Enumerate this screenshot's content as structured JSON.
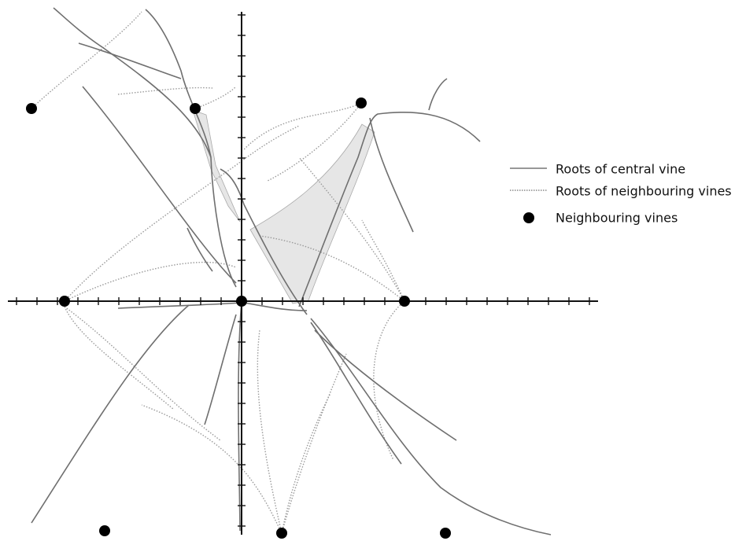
{
  "legend": [
    "Roots of central vine",
    "Roots of neighbouring vines",
    "Neighbouring vines"
  ]
}
